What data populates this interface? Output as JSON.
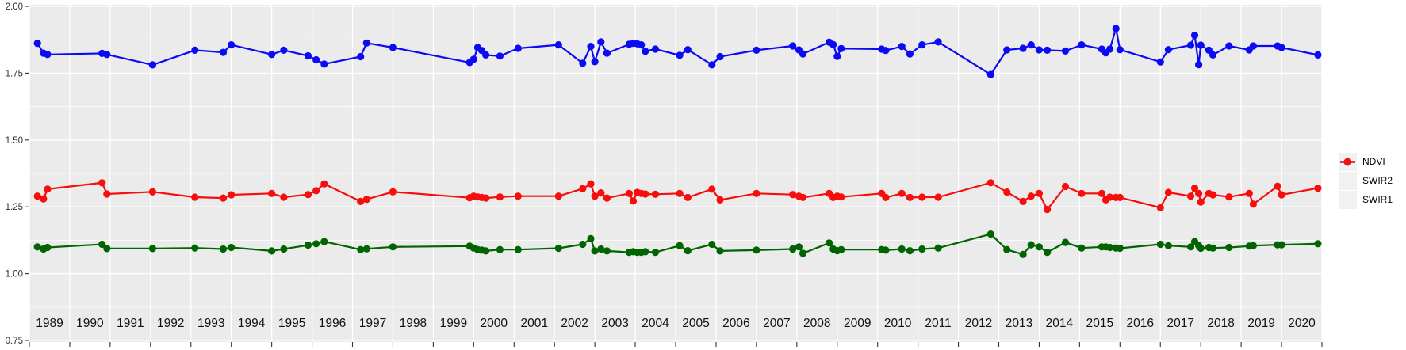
{
  "figure": {
    "background": "#ffffff",
    "panel_background": "#ebebeb",
    "grid_color": "#ffffff",
    "tick_mark_color": "#333333",
    "axis_label_color": "#303030",
    "year_label_color": "#111111",
    "legend_key_background": "#f1f1f1"
  },
  "y_axis": {
    "tick_labels": [
      "2.00",
      "1.75",
      "1.50",
      "1.25",
      "1.00",
      "0.75"
    ],
    "tick_values": [
      2.0,
      1.75,
      1.5,
      1.25,
      1.0,
      0.75
    ],
    "minor_values": [
      1.875,
      1.625,
      1.375,
      1.125,
      0.875
    ],
    "range": [
      0.75,
      2.0
    ]
  },
  "x_axis": {
    "year_labels": [
      "1989",
      "1990",
      "1991",
      "1992",
      "1993",
      "1994",
      "1995",
      "1996",
      "1997",
      "1998",
      "1999",
      "2000",
      "2001",
      "2002",
      "2003",
      "2004",
      "2005",
      "2006",
      "2007",
      "2008",
      "2009",
      "2010",
      "2011",
      "2012",
      "2013",
      "2014",
      "2015",
      "2016",
      "2017",
      "2018",
      "2019",
      "2020"
    ],
    "range": [
      1989,
      2021
    ],
    "tick_interval": 1
  },
  "legend": {
    "position": "right",
    "entries": [
      "NDVI",
      "SWIR2",
      "SWIR1"
    ]
  },
  "chart_data": {
    "type": "line",
    "title": "",
    "xlabel": "",
    "ylabel": "",
    "ylim": [
      0.75,
      2.0
    ],
    "xlim": [
      1989,
      2021
    ],
    "grid": true,
    "legend_position": "right",
    "x_unit": "decimal_year",
    "x": [
      1989.2,
      1989.35,
      1989.45,
      1990.8,
      1990.92,
      1992.05,
      1993.1,
      1993.8,
      1994.0,
      1995.0,
      1995.3,
      1995.9,
      1996.1,
      1996.3,
      1997.2,
      1997.35,
      1998.0,
      1999.9,
      2000.0,
      2000.1,
      2000.2,
      2000.3,
      2000.65,
      2001.1,
      2002.1,
      2002.7,
      2002.9,
      2003.0,
      2003.15,
      2003.3,
      2003.85,
      2003.95,
      2004.05,
      2004.15,
      2004.25,
      2004.5,
      2005.1,
      2005.3,
      2005.9,
      2006.1,
      2007.0,
      2007.9,
      2008.05,
      2008.15,
      2008.8,
      2008.9,
      2009.0,
      2009.1,
      2010.1,
      2010.2,
      2010.6,
      2010.8,
      2011.1,
      2011.5,
      2012.8,
      2013.2,
      2013.6,
      2013.8,
      2014.0,
      2014.2,
      2014.65,
      2015.05,
      2015.55,
      2015.65,
      2015.75,
      2015.9,
      2016.0,
      2017.0,
      2017.2,
      2017.75,
      2017.85,
      2017.95,
      2018.0,
      2018.2,
      2018.3,
      2018.7,
      2019.2,
      2019.3,
      2019.9,
      2020.0,
      2020.9
    ],
    "series": [
      {
        "name": "NDVI",
        "color": "#0a0af5",
        "values": [
          1.862,
          1.825,
          1.82,
          1.824,
          1.82,
          1.781,
          1.836,
          1.828,
          1.856,
          1.82,
          1.836,
          1.815,
          1.8,
          1.784,
          1.812,
          1.863,
          1.846,
          1.79,
          1.802,
          1.846,
          1.835,
          1.818,
          1.814,
          1.843,
          1.856,
          1.787,
          1.85,
          1.793,
          1.867,
          1.825,
          1.858,
          1.862,
          1.86,
          1.856,
          1.832,
          1.84,
          1.817,
          1.838,
          1.781,
          1.812,
          1.836,
          1.852,
          1.837,
          1.822,
          1.866,
          1.857,
          1.813,
          1.842,
          1.84,
          1.835,
          1.85,
          1.822,
          1.856,
          1.867,
          1.745,
          1.837,
          1.843,
          1.856,
          1.837,
          1.836,
          1.833,
          1.856,
          1.84,
          1.826,
          1.84,
          1.917,
          1.838,
          1.792,
          1.838,
          1.855,
          1.892,
          1.782,
          1.855,
          1.836,
          1.818,
          1.852,
          1.837,
          1.852,
          1.852,
          1.846,
          1.818
        ]
      },
      {
        "name": "SWIR2",
        "color": "#006400",
        "values": [
          1.1,
          1.092,
          1.098,
          1.11,
          1.094,
          1.094,
          1.096,
          1.092,
          1.098,
          1.085,
          1.092,
          1.107,
          1.112,
          1.12,
          1.09,
          1.093,
          1.1,
          1.103,
          1.096,
          1.09,
          1.088,
          1.085,
          1.09,
          1.09,
          1.095,
          1.11,
          1.131,
          1.085,
          1.092,
          1.085,
          1.08,
          1.082,
          1.08,
          1.08,
          1.082,
          1.08,
          1.105,
          1.086,
          1.11,
          1.085,
          1.088,
          1.092,
          1.1,
          1.076,
          1.115,
          1.092,
          1.086,
          1.09,
          1.09,
          1.088,
          1.092,
          1.086,
          1.092,
          1.096,
          1.148,
          1.09,
          1.072,
          1.108,
          1.1,
          1.08,
          1.117,
          1.096,
          1.1,
          1.1,
          1.098,
          1.096,
          1.095,
          1.11,
          1.105,
          1.1,
          1.12,
          1.105,
          1.095,
          1.098,
          1.096,
          1.098,
          1.103,
          1.105,
          1.108,
          1.108,
          1.112
        ]
      },
      {
        "name": "SWIR1",
        "color": "#f80d0d",
        "values": [
          1.29,
          1.28,
          1.316,
          1.34,
          1.298,
          1.306,
          1.286,
          1.283,
          1.295,
          1.3,
          1.286,
          1.296,
          1.31,
          1.336,
          1.27,
          1.278,
          1.306,
          1.284,
          1.29,
          1.287,
          1.285,
          1.283,
          1.287,
          1.29,
          1.29,
          1.318,
          1.336,
          1.29,
          1.302,
          1.283,
          1.3,
          1.272,
          1.304,
          1.3,
          1.298,
          1.297,
          1.3,
          1.285,
          1.316,
          1.276,
          1.3,
          1.296,
          1.29,
          1.285,
          1.3,
          1.285,
          1.29,
          1.287,
          1.3,
          1.285,
          1.3,
          1.285,
          1.286,
          1.286,
          1.34,
          1.305,
          1.27,
          1.29,
          1.3,
          1.24,
          1.326,
          1.3,
          1.3,
          1.276,
          1.286,
          1.285,
          1.285,
          1.247,
          1.304,
          1.29,
          1.32,
          1.3,
          1.268,
          1.3,
          1.295,
          1.287,
          1.3,
          1.26,
          1.327,
          1.295,
          1.32
        ]
      }
    ]
  }
}
